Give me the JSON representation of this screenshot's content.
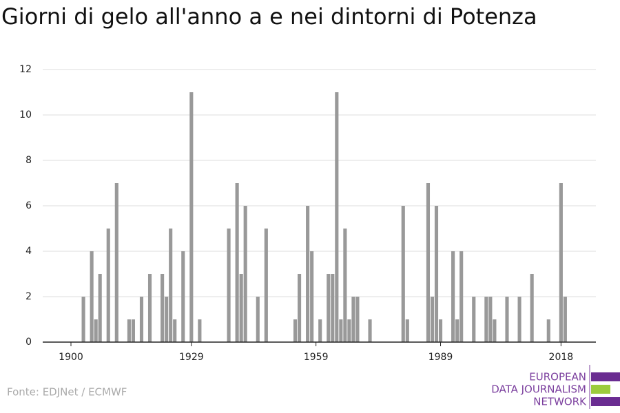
{
  "chart_data": {
    "type": "bar",
    "title": "Giorni di gelo all'anno a e nei dintorni di Potenza",
    "source": "Fonte: EDJNet / ECMWF",
    "x": [
      1903,
      1905,
      1906,
      1907,
      1909,
      1911,
      1914,
      1915,
      1917,
      1919,
      1922,
      1923,
      1924,
      1925,
      1927,
      1929,
      1931,
      1938,
      1940,
      1941,
      1942,
      1945,
      1947,
      1954,
      1955,
      1957,
      1958,
      1960,
      1962,
      1963,
      1964,
      1965,
      1966,
      1967,
      1968,
      1969,
      1972,
      1980,
      1981,
      1986,
      1987,
      1988,
      1989,
      1992,
      1993,
      1994,
      1997,
      2000,
      2001,
      2002,
      2005,
      2008,
      2011,
      2015,
      2018,
      2019
    ],
    "values": [
      2,
      4,
      1,
      3,
      5,
      7,
      1,
      1,
      2,
      3,
      3,
      2,
      5,
      1,
      4,
      11,
      1,
      5,
      7,
      3,
      6,
      2,
      5,
      1,
      3,
      6,
      4,
      1,
      3,
      3,
      11,
      1,
      5,
      1,
      2,
      2,
      1,
      6,
      1,
      7,
      2,
      6,
      1,
      4,
      1,
      4,
      2,
      2,
      2,
      1,
      2,
      2,
      3,
      1,
      7,
      2
    ],
    "color": "#999999",
    "xlim": [
      1893.2,
      2026.4
    ],
    "xticks": [
      1900,
      1929,
      1959,
      1989,
      2018
    ],
    "ylim": [
      0,
      12
    ],
    "yticks": [
      0,
      2,
      4,
      6,
      8,
      10,
      12
    ],
    "grid": true
  },
  "logo": [
    "EUROPEAN",
    "DATA JOURNALISM",
    "NETWORK"
  ]
}
